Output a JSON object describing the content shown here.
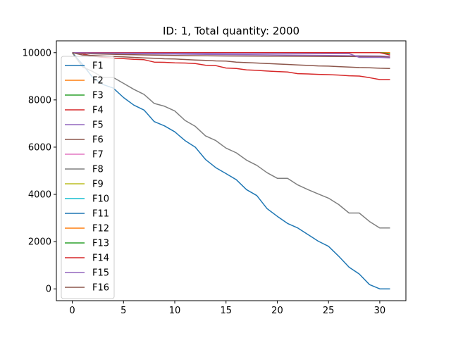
{
  "chart_data": {
    "type": "line",
    "title": "ID: 1, Total quantity: 2000",
    "xlabel": "",
    "ylabel": "",
    "xlim": [
      -1.55,
      32.55
    ],
    "ylim": [
      -500,
      10500
    ],
    "xticks": [
      0,
      5,
      10,
      15,
      20,
      25,
      30
    ],
    "yticks": [
      0,
      2000,
      4000,
      6000,
      8000,
      10000
    ],
    "grid": false,
    "legend_position": "left",
    "series": [
      {
        "name": "F1",
        "color": "#1f77b4",
        "x": [
          0,
          1,
          2,
          3,
          4,
          5,
          6,
          7,
          8,
          9,
          10,
          11,
          12,
          13,
          14,
          15,
          16,
          17,
          18,
          19,
          20,
          21,
          22,
          23,
          24,
          25,
          26,
          27,
          28,
          29,
          30,
          31
        ],
        "values": [
          10000,
          9500,
          8950,
          8650,
          8500,
          8100,
          7780,
          7570,
          7080,
          6900,
          6650,
          6280,
          6000,
          5480,
          5130,
          4880,
          4620,
          4200,
          3950,
          3400,
          3070,
          2770,
          2580,
          2300,
          2020,
          1800,
          1380,
          920,
          630,
          180,
          0,
          0
        ]
      },
      {
        "name": "F2",
        "color": "#ff7f0e",
        "x": [
          0,
          31
        ],
        "values": [
          10000,
          10000
        ]
      },
      {
        "name": "F3",
        "color": "#2ca02c",
        "x": [
          0,
          30,
          31
        ],
        "values": [
          10000,
          10000,
          10000
        ]
      },
      {
        "name": "F4",
        "color": "#d62728",
        "x": [
          0,
          1,
          2,
          3,
          4,
          5,
          6,
          7,
          8,
          9,
          10,
          11,
          12,
          13,
          14,
          15,
          16,
          17,
          18,
          19,
          20,
          21,
          22,
          23,
          24,
          25,
          26,
          27,
          28,
          29,
          30,
          31
        ],
        "values": [
          10000,
          9950,
          9850,
          9800,
          9770,
          9750,
          9720,
          9700,
          9600,
          9590,
          9570,
          9560,
          9540,
          9470,
          9450,
          9350,
          9330,
          9270,
          9250,
          9220,
          9200,
          9180,
          9110,
          9100,
          9080,
          9070,
          9050,
          9020,
          9010,
          8940,
          8860,
          8860
        ]
      },
      {
        "name": "F5",
        "color": "#9467bd",
        "x": [
          0,
          2,
          5,
          10,
          15,
          20,
          25,
          30,
          31
        ],
        "values": [
          10000,
          9980,
          9960,
          9940,
          9920,
          9900,
          9880,
          9860,
          9840
        ]
      },
      {
        "name": "F6",
        "color": "#8c564b",
        "x": [
          0,
          2,
          5,
          10,
          15,
          20,
          25,
          30,
          31
        ],
        "values": [
          10000,
          9950,
          9920,
          9880,
          9860,
          9850,
          9840,
          9830,
          9800
        ]
      },
      {
        "name": "F7",
        "color": "#e377c2",
        "x": [
          0,
          31
        ],
        "values": [
          10000,
          10000
        ]
      },
      {
        "name": "F8",
        "color": "#7f7f7f",
        "x": [
          0,
          1,
          2,
          3,
          4,
          5,
          6,
          7,
          8,
          9,
          10,
          11,
          12,
          13,
          14,
          15,
          16,
          17,
          18,
          19,
          20,
          21,
          22,
          23,
          24,
          25,
          26,
          27,
          28,
          29,
          30,
          31
        ],
        "values": [
          10000,
          9400,
          9200,
          8950,
          8950,
          8700,
          8450,
          8230,
          7850,
          7730,
          7530,
          7130,
          6880,
          6480,
          6280,
          5960,
          5760,
          5450,
          5230,
          4920,
          4680,
          4680,
          4400,
          4200,
          4020,
          3840,
          3570,
          3210,
          3210,
          2850,
          2580,
          2580
        ]
      },
      {
        "name": "F9",
        "color": "#bcbd22",
        "x": [
          0,
          31
        ],
        "values": [
          10000,
          10000
        ]
      },
      {
        "name": "F10",
        "color": "#17becf",
        "x": [
          0,
          31
        ],
        "values": [
          10000,
          10000
        ]
      },
      {
        "name": "F11",
        "color": "#1f77b4",
        "x": [
          0,
          31
        ],
        "values": [
          10000,
          10000
        ]
      },
      {
        "name": "F12",
        "color": "#ff7f0e",
        "x": [
          0,
          31
        ],
        "values": [
          10000,
          10000
        ]
      },
      {
        "name": "F13",
        "color": "#2ca02c",
        "x": [
          0,
          30,
          31
        ],
        "values": [
          10000,
          10000,
          9960
        ]
      },
      {
        "name": "F14",
        "color": "#d62728",
        "x": [
          0,
          29,
          30,
          31
        ],
        "values": [
          10000,
          10000,
          10000,
          9900
        ]
      },
      {
        "name": "F15",
        "color": "#9467bd",
        "x": [
          0,
          2,
          5,
          10,
          15,
          20,
          25,
          27,
          28,
          29,
          30,
          31
        ],
        "values": [
          10000,
          9990,
          9980,
          9975,
          9970,
          9965,
          9960,
          9960,
          9800,
          9800,
          9800,
          9780
        ]
      },
      {
        "name": "F16",
        "color": "#8c564b",
        "x": [
          0,
          1,
          2,
          3,
          4,
          5,
          6,
          7,
          8,
          9,
          10,
          11,
          12,
          13,
          14,
          15,
          16,
          17,
          18,
          19,
          20,
          21,
          22,
          23,
          24,
          25,
          26,
          27,
          28,
          29,
          30,
          31
        ],
        "values": [
          10000,
          9900,
          9880,
          9860,
          9840,
          9820,
          9800,
          9780,
          9760,
          9740,
          9730,
          9710,
          9690,
          9670,
          9650,
          9640,
          9600,
          9580,
          9560,
          9540,
          9520,
          9500,
          9480,
          9460,
          9440,
          9430,
          9410,
          9390,
          9370,
          9360,
          9340,
          9330
        ]
      }
    ]
  }
}
